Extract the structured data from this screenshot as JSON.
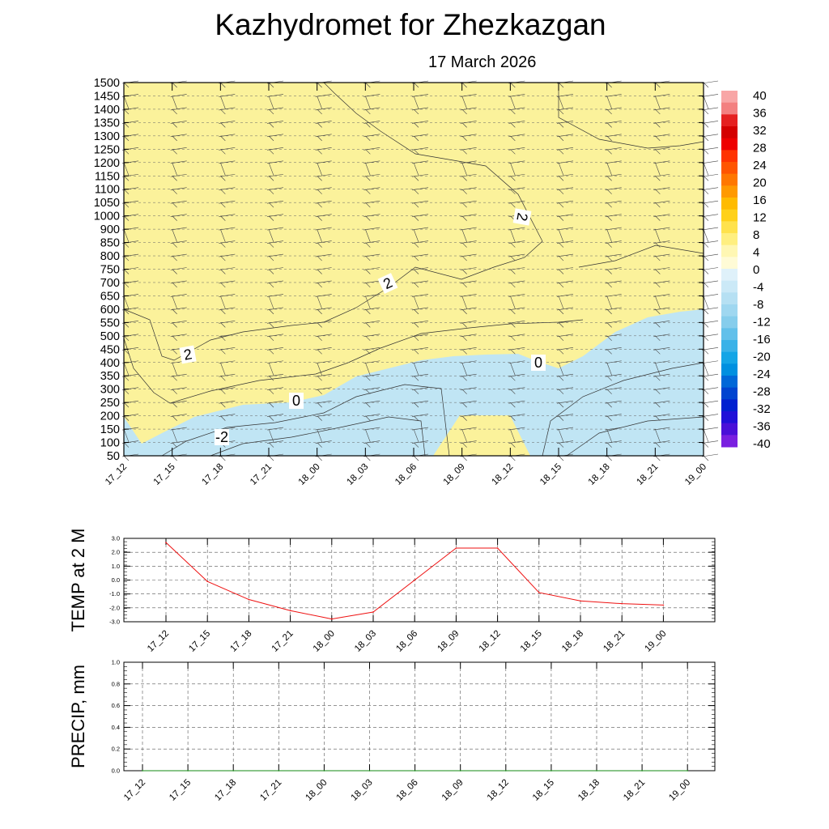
{
  "title": "Kazhydromet  for Zhezkazgan",
  "subtitle": "17 March 2026",
  "chart_data": [
    {
      "type": "heatmap",
      "name": "vertical-temperature-cross-section",
      "x_labels": [
        "17_12",
        "17_15",
        "17_18",
        "17_21",
        "18_00",
        "18_03",
        "18_06",
        "18_09",
        "18_12",
        "18_15",
        "18_18",
        "18_21",
        "19_00"
      ],
      "y_ticks": [
        50,
        100,
        150,
        200,
        250,
        300,
        350,
        400,
        450,
        500,
        550,
        600,
        650,
        700,
        750,
        800,
        850,
        900,
        1000,
        1050,
        1100,
        1150,
        1200,
        1250,
        1300,
        1350,
        1400,
        1450,
        1500
      ],
      "y_labels": [
        "50",
        "100",
        "150",
        "200",
        "250",
        "300",
        "350",
        "400",
        "450",
        "500",
        "550",
        "600",
        "650",
        "700",
        "750",
        "800",
        "850",
        "900",
        "1000",
        "1050",
        "1100",
        "1150",
        "1200",
        "1250",
        "1300",
        "1350",
        "1400",
        "1450",
        "1500"
      ],
      "contour_labels": [
        "2",
        "2",
        "2",
        "0",
        "0",
        "-2"
      ],
      "warm_color": "#fbf29b",
      "cold_color": "#c0e5f4",
      "colorbar": {
        "labels": [
          "40",
          "36",
          "32",
          "28",
          "24",
          "20",
          "16",
          "12",
          "8",
          "4",
          "0",
          "-4",
          "-8",
          "-12",
          "-16",
          "-20",
          "-24",
          "-28",
          "-32",
          "-36",
          "-40"
        ],
        "colors": [
          "#f8a6a6",
          "#f38080",
          "#e52020",
          "#d40000",
          "#ee0000",
          "#ff3300",
          "#ff5500",
          "#ff7700",
          "#ff9900",
          "#ffbb00",
          "#ffd11a",
          "#ffe24d",
          "#ffef80",
          "#fff7b3",
          "#fffbd6",
          "#dff1fa",
          "#cbe9f7",
          "#b6e0f3",
          "#9fd7f0",
          "#86cdec",
          "#62c0ea",
          "#3ab2e8",
          "#14a5e6",
          "#0090e0",
          "#0068d8",
          "#0044d0",
          "#0020d0",
          "#2010d8",
          "#4a10d8",
          "#7a20e0"
        ]
      }
    },
    {
      "type": "line",
      "name": "temp-2m",
      "ylabel": "TEMP at 2 M",
      "categories": [
        "17_12",
        "17_15",
        "17_18",
        "17_21",
        "18_00",
        "18_03",
        "18_06",
        "18_09",
        "18_12",
        "18_15",
        "18_18",
        "18_21",
        "19_00"
      ],
      "values": [
        2.7,
        -0.1,
        -1.4,
        -2.2,
        -2.8,
        -2.3,
        0.0,
        2.3,
        2.3,
        -0.9,
        -1.5,
        -1.7,
        -1.8
      ],
      "y_ticks": [
        3.0,
        2.0,
        1.0,
        0.0,
        -1.0,
        -2.0,
        -3.0
      ],
      "y_tick_labels": [
        "3.0",
        "2.0",
        "1.0",
        "0.0",
        "-1.0",
        "-2.0",
        "-3.0"
      ],
      "ylim": [
        -3.0,
        3.0
      ],
      "line_color": "#ee1111"
    },
    {
      "type": "line",
      "name": "precip",
      "ylabel": "PRECIP, mm",
      "categories": [
        "17_12",
        "17_15",
        "17_18",
        "17_21",
        "18_00",
        "18_03",
        "18_06",
        "18_09",
        "18_12",
        "18_15",
        "18_18",
        "18_21",
        "19_00"
      ],
      "values": [
        0,
        0,
        0,
        0,
        0,
        0,
        0,
        0,
        0,
        0,
        0,
        0,
        0
      ],
      "y_ticks": [
        0.0,
        0.2,
        0.4,
        0.6,
        0.8,
        1.0
      ],
      "y_tick_labels": [
        "0.0",
        "0.2",
        "0.4",
        "0.6",
        "0.8",
        "1.0"
      ],
      "ylim": [
        0.0,
        1.0
      ],
      "line_color": "#118811"
    }
  ]
}
